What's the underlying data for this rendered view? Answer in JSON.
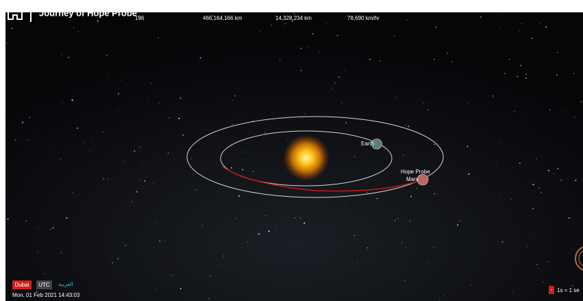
{
  "header": {
    "title": "Journey of Hope Probe",
    "stats": [
      "196",
      "466,164,166 km",
      "14,328,234 km",
      "78,690 km/hr"
    ]
  },
  "bodies": {
    "earth": "Earth",
    "probe": "Hope Probe",
    "mars": "Mars"
  },
  "footer": {
    "timezones": [
      "Dubai",
      "UTC",
      "العربية"
    ],
    "datetime": "Mon, 01 Feb 2021 14:43:03",
    "speed": {
      "button": "-",
      "label": "1s = 1 se"
    }
  }
}
